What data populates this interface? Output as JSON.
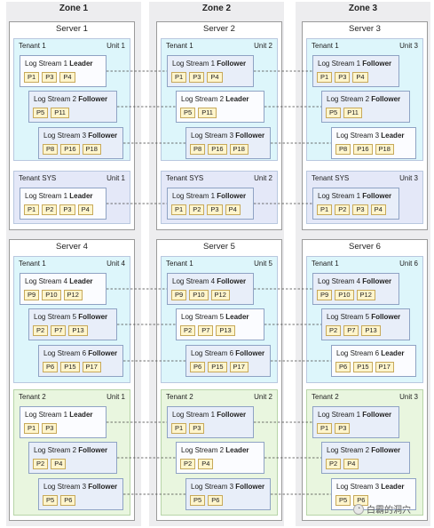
{
  "zones": [
    {
      "title": "Zone 1"
    },
    {
      "title": "Zone 2"
    },
    {
      "title": "Zone 3"
    }
  ],
  "servers": [
    {
      "title": "Server 1",
      "tenants": [
        {
          "name": "Tenant 1",
          "unit": "Unit 1",
          "streams": [
            {
              "name": "Log Stream 1",
              "role": "Leader",
              "parts": [
                "P1",
                "P3",
                "P4"
              ]
            },
            {
              "name": "Log Stream 2",
              "role": "Follower",
              "parts": [
                "P5",
                "P11"
              ]
            },
            {
              "name": "Log Stream 3",
              "role": "Follower",
              "parts": [
                "P8",
                "P16",
                "P18"
              ]
            }
          ]
        },
        {
          "name": "Tenant SYS",
          "unit": "Unit 1",
          "streams": [
            {
              "name": "Log Stream 1",
              "role": "Leader",
              "parts": [
                "P1",
                "P2",
                "P3",
                "P4"
              ]
            }
          ]
        }
      ]
    },
    {
      "title": "Server 2",
      "tenants": [
        {
          "name": "Tenant 1",
          "unit": "Unit 2",
          "streams": [
            {
              "name": "Log Stream 1",
              "role": "Follower",
              "parts": [
                "P1",
                "P3",
                "P4"
              ]
            },
            {
              "name": "Log Stream 2",
              "role": "Leader",
              "parts": [
                "P5",
                "P11"
              ]
            },
            {
              "name": "Log Stream 3",
              "role": "Follower",
              "parts": [
                "P8",
                "P16",
                "P18"
              ]
            }
          ]
        },
        {
          "name": "Tenant SYS",
          "unit": "Unit 2",
          "streams": [
            {
              "name": "Log Stream 1",
              "role": "Follower",
              "parts": [
                "P1",
                "P2",
                "P3",
                "P4"
              ]
            }
          ]
        }
      ]
    },
    {
      "title": "Server 3",
      "tenants": [
        {
          "name": "Tenant 1",
          "unit": "Unit 3",
          "streams": [
            {
              "name": "Log Stream 1",
              "role": "Follower",
              "parts": [
                "P1",
                "P3",
                "P4"
              ]
            },
            {
              "name": "Log Stream 2",
              "role": "Follower",
              "parts": [
                "P5",
                "P11"
              ]
            },
            {
              "name": "Log Stream 3",
              "role": "Leader",
              "parts": [
                "P8",
                "P16",
                "P18"
              ]
            }
          ]
        },
        {
          "name": "Tenant SYS",
          "unit": "Unit 3",
          "streams": [
            {
              "name": "Log Stream 1",
              "role": "Follower",
              "parts": [
                "P1",
                "P2",
                "P3",
                "P4"
              ]
            }
          ]
        }
      ]
    },
    {
      "title": "Server 4",
      "tenants": [
        {
          "name": "Tenant 1",
          "unit": "Unit 4",
          "streams": [
            {
              "name": "Log Stream 4",
              "role": "Leader",
              "parts": [
                "P9",
                "P10",
                "P12"
              ]
            },
            {
              "name": "Log Stream 5",
              "role": "Follower",
              "parts": [
                "P2",
                "P7",
                "P13"
              ]
            },
            {
              "name": "Log Stream 6",
              "role": "Follower",
              "parts": [
                "P6",
                "P15",
                "P17"
              ]
            }
          ]
        },
        {
          "name": "Tenant 2",
          "unit": "Unit 1",
          "streams": [
            {
              "name": "Log Stream 1",
              "role": "Leader",
              "parts": [
                "P1",
                "P3"
              ]
            },
            {
              "name": "Log Stream 2",
              "role": "Follower",
              "parts": [
                "P2",
                "P4"
              ]
            },
            {
              "name": "Log Stream 3",
              "role": "Follower",
              "parts": [
                "P5",
                "P6"
              ]
            }
          ]
        }
      ]
    },
    {
      "title": "Server 5",
      "tenants": [
        {
          "name": "Tenant 1",
          "unit": "Unit 5",
          "streams": [
            {
              "name": "Log Stream 4",
              "role": "Follower",
              "parts": [
                "P9",
                "P10",
                "P12"
              ]
            },
            {
              "name": "Log Stream 5",
              "role": "Leader",
              "parts": [
                "P2",
                "P7",
                "P13"
              ]
            },
            {
              "name": "Log Stream 6",
              "role": "Follower",
              "parts": [
                "P6",
                "P15",
                "P17"
              ]
            }
          ]
        },
        {
          "name": "Tenant 2",
          "unit": "Unit 2",
          "streams": [
            {
              "name": "Log Stream 1",
              "role": "Follower",
              "parts": [
                "P1",
                "P3"
              ]
            },
            {
              "name": "Log Stream 2",
              "role": "Leader",
              "parts": [
                "P2",
                "P4"
              ]
            },
            {
              "name": "Log Stream 3",
              "role": "Follower",
              "parts": [
                "P5",
                "P6"
              ]
            }
          ]
        }
      ]
    },
    {
      "title": "Server 6",
      "tenants": [
        {
          "name": "Tenant 1",
          "unit": "Unit 6",
          "streams": [
            {
              "name": "Log Stream 4",
              "role": "Follower",
              "parts": [
                "P9",
                "P10",
                "P12"
              ]
            },
            {
              "name": "Log Stream 5",
              "role": "Follower",
              "parts": [
                "P2",
                "P7",
                "P13"
              ]
            },
            {
              "name": "Log Stream 6",
              "role": "Leader",
              "parts": [
                "P6",
                "P15",
                "P17"
              ]
            }
          ]
        },
        {
          "name": "Tenant 2",
          "unit": "Unit 3",
          "streams": [
            {
              "name": "Log Stream 1",
              "role": "Follower",
              "parts": [
                "P1",
                "P3"
              ]
            },
            {
              "name": "Log Stream 2",
              "role": "Follower",
              "parts": [
                "P2",
                "P4"
              ]
            },
            {
              "name": "Log Stream 3",
              "role": "Leader",
              "parts": [
                "P5",
                "P6"
              ]
            }
          ]
        }
      ]
    }
  ],
  "watermark": {
    "text": "白霸的洞穴"
  }
}
